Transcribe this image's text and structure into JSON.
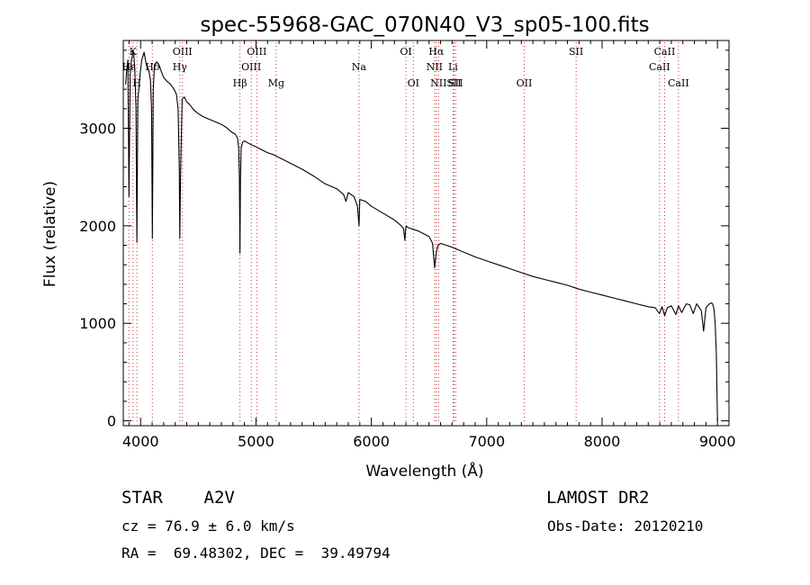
{
  "chart_data": {
    "type": "line",
    "title": "spec-55968-GAC_070N40_V3_sp05-100.fits",
    "xlabel": "Wavelength (Å)",
    "ylabel": "Flux (relative)",
    "xlim": [
      3850,
      9100
    ],
    "ylim": [
      -50,
      3900
    ],
    "xticks": [
      4000,
      5000,
      6000,
      7000,
      8000,
      9000
    ],
    "yticks": [
      0,
      1000,
      2000,
      3000
    ],
    "grid": false,
    "line_color": "#000000",
    "marker_color": "#cc3333",
    "spectral_lines": [
      {
        "label": "K",
        "wavelength": 3934,
        "row": 0
      },
      {
        "label": "H",
        "wavelength": 3968,
        "row": 2
      },
      {
        "label": "Hδ",
        "wavelength": 4102,
        "row": 1
      },
      {
        "label": "Hε",
        "wavelength": 3899,
        "row": 1
      },
      {
        "label": "Hγ",
        "wavelength": 4340,
        "row": 1
      },
      {
        "label": "OIII",
        "wavelength": 4363,
        "row": 0
      },
      {
        "label": "Hβ",
        "wavelength": 4861,
        "row": 2
      },
      {
        "label": "OIII",
        "wavelength": 4959,
        "row": 1
      },
      {
        "label": "OIII",
        "wavelength": 5007,
        "row": 0
      },
      {
        "label": "Mg",
        "wavelength": 5175,
        "row": 2
      },
      {
        "label": "Na",
        "wavelength": 5893,
        "row": 1
      },
      {
        "label": "OI",
        "wavelength": 6300,
        "row": 0
      },
      {
        "label": "OI",
        "wavelength": 6364,
        "row": 2
      },
      {
        "label": "NII",
        "wavelength": 6548,
        "row": 1
      },
      {
        "label": "Hα",
        "wavelength": 6563,
        "row": 0
      },
      {
        "label": "NII",
        "wavelength": 6583,
        "row": 2
      },
      {
        "label": "SII",
        "wavelength": 6717,
        "row": 2
      },
      {
        "label": "Li",
        "wavelength": 6708,
        "row": 1
      },
      {
        "label": "SII",
        "wavelength": 6731,
        "row": 2
      },
      {
        "label": "OII",
        "wavelength": 7325,
        "row": 2
      },
      {
        "label": "SII",
        "wavelength": 7775,
        "row": 0
      },
      {
        "label": "CaII",
        "wavelength": 8498,
        "row": 1
      },
      {
        "label": "CaII",
        "wavelength": 8542,
        "row": 0
      },
      {
        "label": "CaII",
        "wavelength": 8662,
        "row": 2
      }
    ],
    "series": [
      {
        "x": [
          3870,
          3880,
          3890,
          3899,
          3910,
          3920,
          3930,
          3934,
          3940,
          3950,
          3960,
          3968,
          3976,
          3985,
          3995,
          4010,
          4030,
          4050,
          4070,
          4085,
          4095,
          4102,
          4110,
          4120,
          4140,
          4160,
          4180,
          4200,
          4230,
          4260,
          4290,
          4310,
          4325,
          4335,
          4340,
          4346,
          4360,
          4380,
          4400,
          4420,
          4440,
          4460,
          4500,
          4540,
          4580,
          4620,
          4660,
          4700,
          4740,
          4760,
          4790,
          4820,
          4840,
          4850,
          4856,
          4861,
          4866,
          4872,
          4885,
          4900,
          4930,
          4960,
          5000,
          5050,
          5100,
          5150,
          5200,
          5300,
          5400,
          5500,
          5600,
          5700,
          5760,
          5780,
          5800,
          5850,
          5880,
          5893,
          5900,
          5950,
          6000,
          6100,
          6200,
          6250,
          6280,
          6290,
          6300,
          6320,
          6400,
          6500,
          6530,
          6548,
          6563,
          6578,
          6600,
          6650,
          6700,
          6800,
          6900,
          7000,
          7100,
          7200,
          7300,
          7400,
          7500,
          7600,
          7700,
          7800,
          7900,
          8000,
          8100,
          8200,
          8300,
          8400,
          8460,
          8498,
          8520,
          8542,
          8565,
          8600,
          8640,
          8662,
          8690,
          8730,
          8760,
          8790,
          8820,
          8860,
          8880,
          8900,
          8930,
          8950,
          8960,
          8970,
          8980,
          8990,
          9000
        ],
        "y": [
          3450,
          3600,
          3700,
          2300,
          3550,
          3700,
          3750,
          3800,
          3780,
          3600,
          3200,
          1830,
          3300,
          3400,
          3550,
          3700,
          3780,
          3650,
          3600,
          3500,
          3200,
          1870,
          3400,
          3650,
          3680,
          3650,
          3580,
          3520,
          3480,
          3450,
          3400,
          3350,
          3200,
          2600,
          1870,
          2500,
          3300,
          3320,
          3270,
          3250,
          3220,
          3190,
          3150,
          3120,
          3100,
          3080,
          3060,
          3040,
          3010,
          2990,
          2960,
          2940,
          2900,
          2800,
          2500,
          1720,
          2500,
          2800,
          2860,
          2870,
          2850,
          2830,
          2810,
          2780,
          2750,
          2730,
          2700,
          2640,
          2580,
          2510,
          2430,
          2380,
          2320,
          2250,
          2340,
          2300,
          2200,
          2000,
          2270,
          2250,
          2200,
          2130,
          2060,
          2010,
          1970,
          1850,
          2000,
          1980,
          1950,
          1890,
          1820,
          1570,
          1730,
          1800,
          1820,
          1800,
          1780,
          1730,
          1680,
          1640,
          1600,
          1560,
          1520,
          1480,
          1450,
          1420,
          1390,
          1350,
          1320,
          1290,
          1260,
          1230,
          1200,
          1170,
          1160,
          1100,
          1170,
          1080,
          1160,
          1180,
          1090,
          1180,
          1110,
          1200,
          1190,
          1100,
          1200,
          1130,
          920,
          1160,
          1200,
          1210,
          1190,
          1150,
          1000,
          700,
          0
        ]
      }
    ]
  },
  "info": {
    "object_line": "STAR    A2V",
    "survey": "LAMOST DR2",
    "cz": "cz = 76.9 ± 6.0 km/s",
    "obs_date": "Obs-Date: 20120210",
    "coords": "RA =  69.48302, DEC =  39.49794"
  }
}
